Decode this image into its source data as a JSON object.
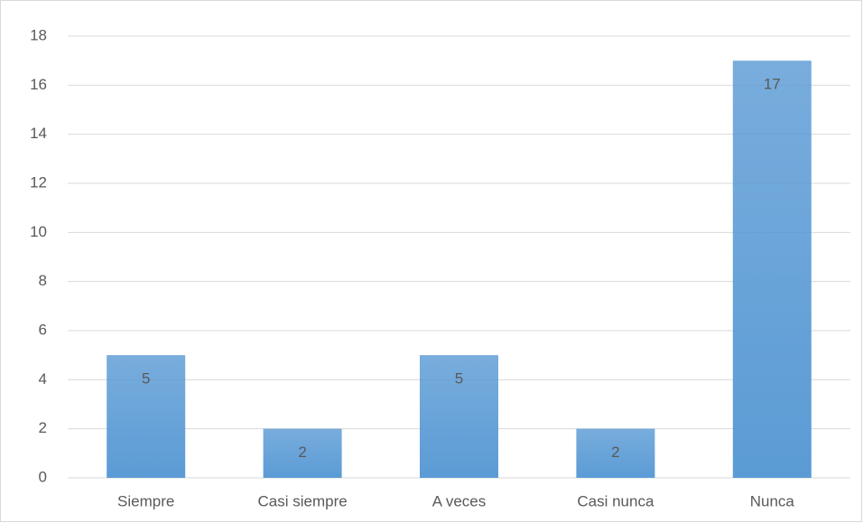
{
  "chart_data": {
    "type": "bar",
    "categories": [
      "Siempre",
      "Casi siempre",
      "A veces",
      "Casi nunca",
      "Nunca"
    ],
    "values": [
      5,
      2,
      5,
      2,
      17
    ],
    "color": "#5b9bd5",
    "ylim": [
      0,
      18
    ],
    "yticks": [
      0,
      2,
      4,
      6,
      8,
      10,
      12,
      14,
      16,
      18
    ],
    "grid": true
  }
}
